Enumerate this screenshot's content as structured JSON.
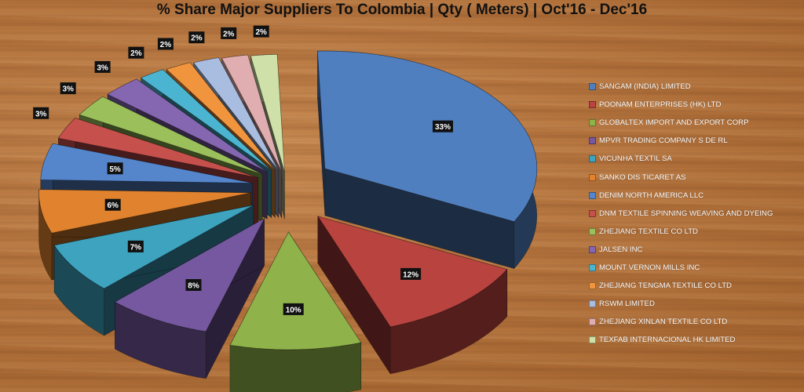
{
  "chart_data": {
    "type": "pie",
    "title": "% Share Major Suppliers To Colombia | Qty ( Meters) | Oct'16 - Dec'16",
    "legend_position": "right",
    "style": "3d-exploded",
    "slices": [
      {
        "label": "SANGAM (INDIA) LIMITED",
        "value": 33,
        "display": "33%",
        "color": "#4f7fbf"
      },
      {
        "label": "POONAM ENTERPRISES  (HK) LTD",
        "value": 12,
        "display": "12%",
        "color": "#b8433f"
      },
      {
        "label": "GLOBALTEX IMPORT AND EXPORT CORP",
        "value": 10,
        "display": "10%",
        "color": "#8fb24a"
      },
      {
        "label": "MPVR TRADING COMPANY S DE RL",
        "value": 8,
        "display": "8%",
        "color": "#7658a0"
      },
      {
        "label": "VICUNHA TEXTIL SA",
        "value": 7,
        "display": "7%",
        "color": "#3ea3bf"
      },
      {
        "label": "SANKO DIS TICARET AS",
        "value": 6,
        "display": "6%",
        "color": "#e0822e"
      },
      {
        "label": "DENIM NORTH AMERICA LLC",
        "value": 5,
        "display": "5%",
        "color": "#5586cc"
      },
      {
        "label": "DNM TEXTILE SPINNING WEAVING AND DYEING",
        "value": 3,
        "display": "3%",
        "color": "#c5504c"
      },
      {
        "label": "ZHEJIANG TEXTILE CO LTD",
        "value": 3,
        "display": "3%",
        "color": "#9bbf5a"
      },
      {
        "label": "JALSEN INC",
        "value": 3,
        "display": "3%",
        "color": "#8566b0"
      },
      {
        "label": "MOUNT VERNON MILLS INC",
        "value": 2,
        "display": "2%",
        "color": "#4bb5d1"
      },
      {
        "label": "ZHEJIANG TENGMA TEXTILE CO LTD",
        "value": 2,
        "display": "2%",
        "color": "#f0953e"
      },
      {
        "label": "RSWM LIMITED",
        "value": 2,
        "display": "2%",
        "color": "#a9bde0"
      },
      {
        "label": "ZHEJIANG XINLAN TEXTILE CO LTD",
        "value": 2,
        "display": "2%",
        "color": "#e0aeb0"
      },
      {
        "label": "TEXFAB INTERNACIONAL  HK LIMITED",
        "value": 2,
        "display": "2%",
        "color": "#cfe0a8"
      }
    ]
  }
}
